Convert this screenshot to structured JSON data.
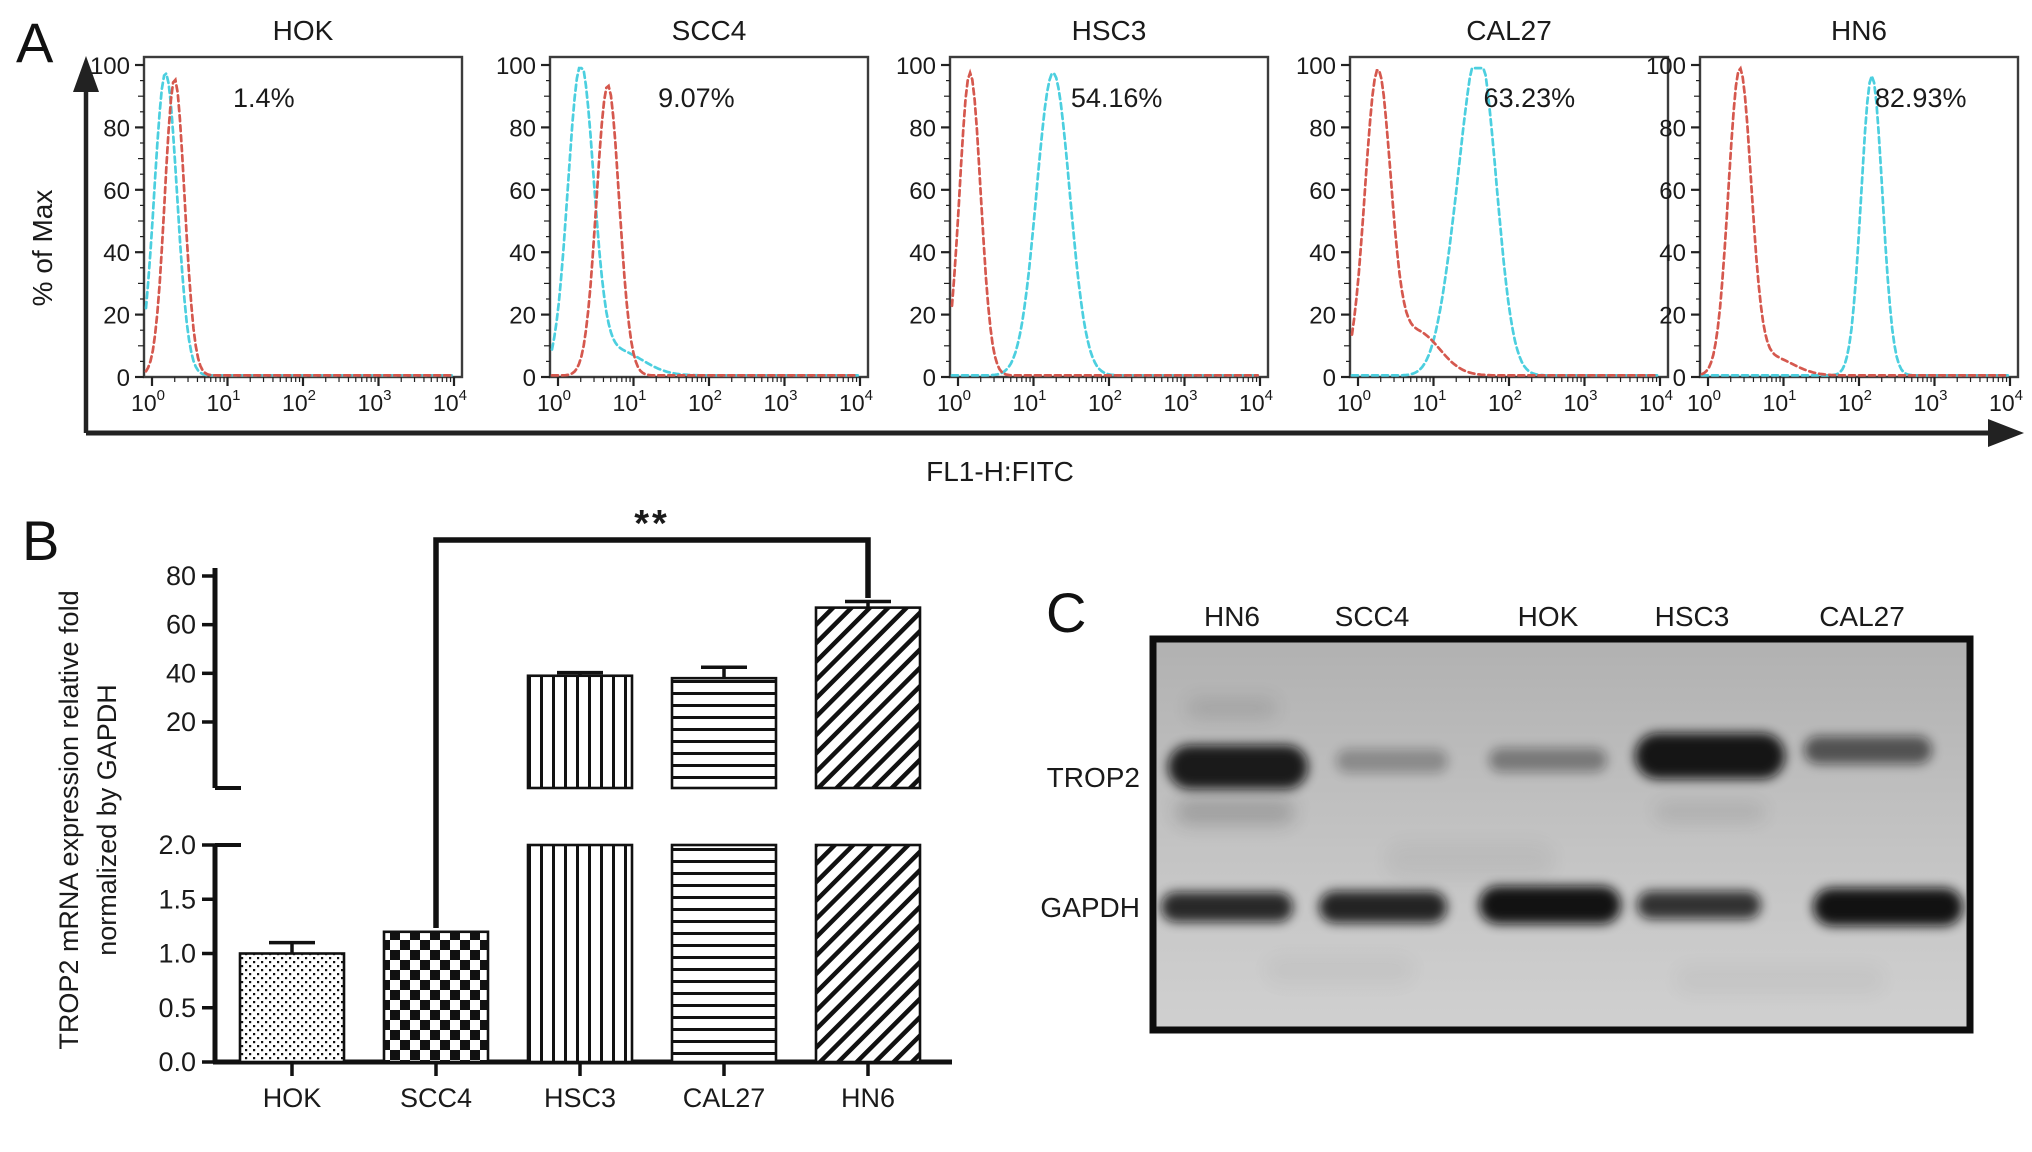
{
  "figure_labels": {
    "a": "A",
    "b": "B",
    "c": "C"
  },
  "chart_data": [
    {
      "panel": "A",
      "type": "line",
      "kind": "flow-cytometry-overlay-histograms",
      "ylabel": "% of Max",
      "xlabel": "FL1-H:FITC",
      "yticks": [
        0,
        20,
        40,
        60,
        80,
        100
      ],
      "ylim": [
        0,
        100
      ],
      "xscale": "log10",
      "xtick_base": "10",
      "xtick_exponents": [
        "0",
        "1",
        "2",
        "3",
        "4"
      ],
      "series_colors": {
        "control_red": "#d5584e",
        "stained_cyan": "#4ccfdf"
      },
      "line_style": "dashed",
      "subplots": [
        {
          "title": "HOK",
          "positive_percent": "1.4%",
          "label_fx": 0.28,
          "red": [
            {
              "mu": 0.3,
              "s": 0.13,
              "h": 95
            }
          ],
          "cyan": [
            {
              "mu": 0.18,
              "s": 0.15,
              "h": 97
            }
          ]
        },
        {
          "title": "SCC4",
          "positive_percent": "9.07%",
          "label_fx": 0.34,
          "red": [
            {
              "mu": 0.66,
              "s": 0.15,
              "h": 93
            }
          ],
          "cyan": [
            {
              "mu": 0.3,
              "s": 0.17,
              "h": 97
            },
            {
              "mu": 0.78,
              "s": 0.34,
              "h": 8
            }
          ]
        },
        {
          "title": "HSC3",
          "positive_percent": "54.16%",
          "label_fx": 0.38,
          "red": [
            {
              "mu": 0.16,
              "s": 0.14,
              "h": 97
            }
          ],
          "cyan": [
            {
              "mu": 1.26,
              "s": 0.22,
              "h": 97
            }
          ]
        },
        {
          "title": "CAL27",
          "positive_percent": "63.23%",
          "label_fx": 0.42,
          "red": [
            {
              "mu": 0.26,
              "s": 0.17,
              "h": 95
            },
            {
              "mu": 0.78,
              "s": 0.3,
              "h": 14
            }
          ],
          "cyan": [
            {
              "mu": 1.62,
              "s": 0.22,
              "h": 98
            },
            {
              "mu": 1.28,
              "s": 0.2,
              "h": 25
            }
          ]
        },
        {
          "title": "HN6",
          "positive_percent": "82.93%",
          "label_fx": 0.55,
          "red": [
            {
              "mu": 0.42,
              "s": 0.15,
              "h": 96
            },
            {
              "mu": 0.82,
              "s": 0.3,
              "h": 6
            }
          ],
          "cyan": [
            {
              "mu": 2.17,
              "s": 0.14,
              "h": 96
            }
          ]
        }
      ]
    },
    {
      "panel": "B",
      "type": "bar",
      "ylabel_line1": "TROP2 mRNA expression relative fold",
      "ylabel_line2": "normalized by GAPDH",
      "categories": [
        "HOK",
        "SCC4",
        "HSC3",
        "CAL27",
        "HN6"
      ],
      "values": [
        1.0,
        1.2,
        39,
        38,
        67
      ],
      "errors_plus": [
        0.1,
        0,
        1.3,
        4.5,
        2.5
      ],
      "patterns": [
        "dots",
        "checker",
        "vlines",
        "hlines",
        "diag"
      ],
      "axis_break": true,
      "upper_ticks": [
        20,
        40,
        60,
        80
      ],
      "upper_range_top": 80,
      "lower_tick_labels": [
        "0.0",
        "0.5",
        "1.0",
        "1.5",
        "2.0"
      ],
      "lower_tick_values": [
        0,
        0.5,
        1.0,
        1.5,
        2.0
      ],
      "significance": {
        "label": "**",
        "from": "SCC4",
        "to": "HN6"
      }
    },
    {
      "panel": "C",
      "type": "heatmap",
      "kind": "western-blot",
      "lanes": [
        "HN6",
        "SCC4",
        "HOK",
        "HSC3",
        "CAL27"
      ],
      "rows": [
        "TROP2",
        "GAPDH"
      ],
      "band_intensity": {
        "TROP2": [
          0.92,
          0.28,
          0.38,
          0.95,
          0.6
        ],
        "GAPDH": [
          0.85,
          0.88,
          0.97,
          0.8,
          0.97
        ]
      }
    }
  ]
}
